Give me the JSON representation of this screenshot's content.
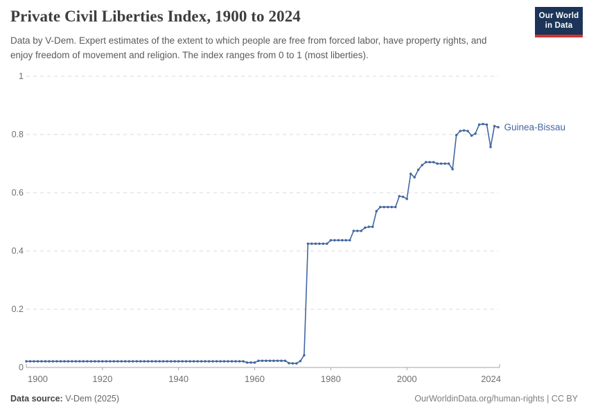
{
  "header": {
    "title": "Private Civil Liberties Index, 1900 to 2024",
    "subtitle": "Data by V-Dem. Expert estimates of the extent to which people are free from forced labor, have property rights, and enjoy freedom of movement and religion. The index ranges from 0 to 1 (most liberties)."
  },
  "logo": {
    "line1": "Our World",
    "line2": "in Data",
    "bg_color": "#1b3457",
    "accent_color": "#d0342c"
  },
  "chart_data": {
    "type": "line",
    "title": "Private Civil Liberties Index, 1900 to 2024",
    "xlabel": "",
    "ylabel": "",
    "xlim": [
      1900,
      2024
    ],
    "ylim": [
      0,
      1
    ],
    "xticks": [
      1900,
      1920,
      1940,
      1960,
      1980,
      2000,
      2024
    ],
    "yticks": [
      0,
      0.2,
      0.4,
      0.6,
      0.8,
      1
    ],
    "ytick_labels": [
      "0",
      "0.2",
      "0.4",
      "0.6",
      "0.8",
      "1"
    ],
    "grid": "dashed-horizontal",
    "legend_position": "end-of-line-label",
    "line_color": "#4266a2",
    "series": [
      {
        "name": "Guinea-Bissau",
        "start_year": 1900,
        "end_year": 2024,
        "values": [
          0.021,
          0.021,
          0.021,
          0.021,
          0.021,
          0.021,
          0.021,
          0.021,
          0.021,
          0.021,
          0.021,
          0.021,
          0.021,
          0.021,
          0.021,
          0.021,
          0.021,
          0.021,
          0.021,
          0.021,
          0.021,
          0.021,
          0.021,
          0.021,
          0.021,
          0.021,
          0.021,
          0.021,
          0.021,
          0.021,
          0.021,
          0.021,
          0.021,
          0.021,
          0.021,
          0.021,
          0.021,
          0.021,
          0.021,
          0.021,
          0.021,
          0.021,
          0.021,
          0.021,
          0.021,
          0.021,
          0.021,
          0.021,
          0.021,
          0.021,
          0.021,
          0.021,
          0.021,
          0.021,
          0.021,
          0.021,
          0.021,
          0.021,
          0.017,
          0.017,
          0.017,
          0.023,
          0.023,
          0.023,
          0.023,
          0.023,
          0.023,
          0.023,
          0.023,
          0.015,
          0.014,
          0.014,
          0.022,
          0.042,
          0.425,
          0.425,
          0.425,
          0.425,
          0.425,
          0.425,
          0.437,
          0.437,
          0.437,
          0.437,
          0.437,
          0.437,
          0.469,
          0.469,
          0.469,
          0.48,
          0.483,
          0.483,
          0.537,
          0.551,
          0.551,
          0.551,
          0.551,
          0.551,
          0.588,
          0.586,
          0.579,
          0.665,
          0.653,
          0.679,
          0.695,
          0.705,
          0.705,
          0.705,
          0.7,
          0.7,
          0.7,
          0.7,
          0.681,
          0.798,
          0.812,
          0.814,
          0.812,
          0.796,
          0.803,
          0.834,
          0.836,
          0.834,
          0.757,
          0.829,
          0.825
        ]
      }
    ]
  },
  "footer": {
    "source_label": "Data source:",
    "source_value": "V-Dem (2025)",
    "right_text": "OurWorldinData.org/human-rights | CC BY"
  }
}
